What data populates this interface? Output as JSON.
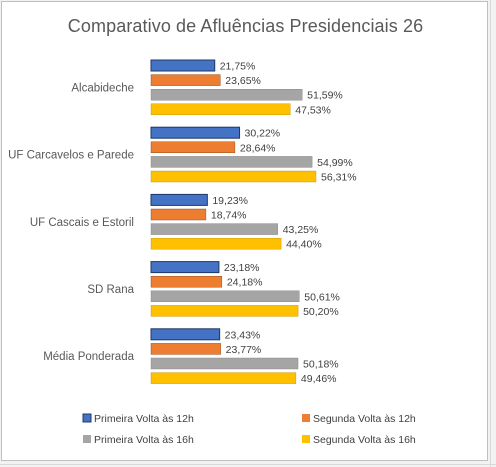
{
  "chart_data": {
    "type": "bar",
    "orientation": "horizontal",
    "title": "Comparativo de Afluências Presidenciais 26",
    "categories": [
      "Alcabideche",
      "UF Carcavelos e Parede",
      "UF Cascais e Estoril",
      "SD Rana",
      "Média Ponderada"
    ],
    "series": [
      {
        "name": "Primeira Volta às 12h",
        "color": "#4472c4",
        "values": [
          21.75,
          30.22,
          19.23,
          23.18,
          23.43
        ],
        "labels": [
          "21,75%",
          "30,22%",
          "19,23%",
          "23,18%",
          "23,43%"
        ]
      },
      {
        "name": "Segunda Volta às 12h",
        "color": "#ed7d31",
        "values": [
          23.65,
          28.64,
          18.74,
          24.18,
          23.77
        ],
        "labels": [
          "23,65%",
          "28,64%",
          "18,74%",
          "24,18%",
          "23,77%"
        ]
      },
      {
        "name": "Primeira Volta às 16h",
        "color": "#a5a5a5",
        "values": [
          51.59,
          54.99,
          43.25,
          50.61,
          50.18
        ],
        "labels": [
          "51,59%",
          "54,99%",
          "43,25%",
          "50,61%",
          "50,18%"
        ]
      },
      {
        "name": "Segunda Volta às 16h",
        "color": "#ffc000",
        "values": [
          47.53,
          56.31,
          44.4,
          50.2,
          49.46
        ],
        "labels": [
          "47,53%",
          "56,31%",
          "44,40%",
          "50,20%",
          "49,46%"
        ]
      }
    ],
    "xlim": [
      0,
      60
    ],
    "grid": false,
    "legend_position": "bottom"
  }
}
